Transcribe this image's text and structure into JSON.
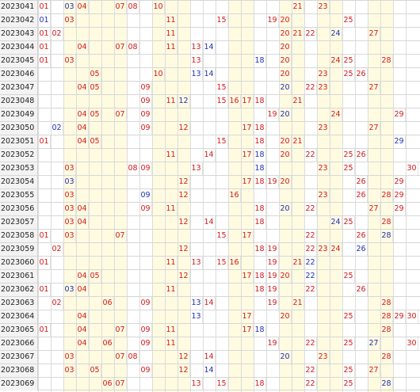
{
  "table": {
    "columns": 29,
    "rows": [
      {
        "issue": "2023041",
        "reds": [
          1,
          4,
          7,
          8,
          10,
          21,
          23
        ],
        "blues": [
          3
        ]
      },
      {
        "issue": "2023042",
        "reds": [
          3,
          11,
          15,
          19,
          20,
          25
        ],
        "blues": [
          1
        ]
      },
      {
        "issue": "2023043",
        "reds": [
          1,
          2,
          11,
          20,
          21,
          22,
          27
        ],
        "blues": [
          24
        ]
      },
      {
        "issue": "2023044",
        "reds": [
          1,
          4,
          7,
          8,
          11,
          13,
          20
        ],
        "blues": [
          14
        ]
      },
      {
        "issue": "2023045",
        "reds": [
          1,
          3,
          13,
          20,
          24,
          25,
          28
        ],
        "blues": [
          18
        ]
      },
      {
        "issue": "2023046",
        "reds": [
          5,
          10,
          20,
          23,
          25,
          26
        ],
        "blues": [
          13,
          14
        ]
      },
      {
        "issue": "2023047",
        "reds": [
          4,
          5,
          9,
          15,
          22,
          23,
          27
        ],
        "blues": [
          20
        ]
      },
      {
        "issue": "2023048",
        "reds": [
          9,
          11,
          15,
          16,
          17,
          18,
          21
        ],
        "blues": [
          12
        ]
      },
      {
        "issue": "2023049",
        "reds": [
          4,
          5,
          7,
          9,
          19,
          24,
          29
        ],
        "blues": [
          20
        ]
      },
      {
        "issue": "2023050",
        "reds": [
          4,
          9,
          12,
          17,
          18,
          23,
          27
        ],
        "blues": [
          2
        ]
      },
      {
        "issue": "2023051",
        "reds": [
          1,
          4,
          5,
          15,
          18,
          20,
          21
        ],
        "blues": [
          29
        ]
      },
      {
        "issue": "2023052",
        "reds": [
          11,
          14,
          17,
          20,
          22,
          25,
          26
        ],
        "blues": [
          18
        ]
      },
      {
        "issue": "2023053",
        "reds": [
          3,
          8,
          9,
          13,
          23,
          25,
          30
        ],
        "blues": [
          18
        ]
      },
      {
        "issue": "2023054",
        "reds": [
          12,
          17,
          18,
          19,
          20,
          26,
          29
        ],
        "blues": [
          3
        ]
      },
      {
        "issue": "2023055",
        "reds": [
          3,
          12,
          16,
          23,
          26,
          28,
          29
        ],
        "blues": [
          9
        ]
      },
      {
        "issue": "2023056",
        "reds": [
          3,
          4,
          9,
          11,
          18,
          22,
          27,
          29
        ],
        "blues": [
          20
        ]
      },
      {
        "issue": "2023057",
        "reds": [
          3,
          4,
          12,
          14,
          18,
          25,
          28
        ],
        "blues": [
          24
        ]
      },
      {
        "issue": "2023058",
        "reds": [
          1,
          3,
          7,
          15,
          17,
          22,
          26
        ],
        "blues": [
          28
        ]
      },
      {
        "issue": "2023059",
        "reds": [
          2,
          12,
          18,
          19,
          22,
          23,
          24
        ],
        "blues": [
          26
        ]
      },
      {
        "issue": "2023060",
        "reds": [
          1,
          11,
          13,
          15,
          16,
          19,
          21
        ],
        "blues": [
          22
        ]
      },
      {
        "issue": "2023061",
        "reds": [
          4,
          5,
          12,
          17,
          18,
          19,
          20,
          25
        ],
        "blues": [
          22
        ]
      },
      {
        "issue": "2023062",
        "reds": [
          1,
          4,
          11,
          18,
          19,
          22,
          26
        ],
        "blues": [
          3
        ]
      },
      {
        "issue": "2023063",
        "reds": [
          2,
          6,
          9,
          14,
          19,
          21,
          28
        ],
        "blues": [
          13
        ]
      },
      {
        "issue": "2023064",
        "reds": [
          4,
          17,
          20,
          25,
          28,
          29,
          30
        ],
        "blues": [
          13
        ]
      },
      {
        "issue": "2023065",
        "reds": [
          1,
          4,
          7,
          9,
          11,
          17,
          28
        ],
        "blues": [
          18
        ]
      },
      {
        "issue": "2023066",
        "reds": [
          4,
          6,
          9,
          11,
          19,
          22,
          25,
          30
        ],
        "blues": [
          27
        ]
      },
      {
        "issue": "2023067",
        "reds": [
          3,
          7,
          8,
          12,
          14,
          23,
          28
        ],
        "blues": [
          20
        ]
      },
      {
        "issue": "2023068",
        "reds": [
          3,
          5,
          9,
          12,
          22,
          25,
          27
        ],
        "blues": [
          14
        ]
      },
      {
        "issue": "2023069",
        "reds": [
          6,
          7,
          13,
          15,
          18,
          22,
          25
        ],
        "blues": [
          28
        ]
      }
    ]
  },
  "colors": {
    "red": "#d21818",
    "blue": "#1f2fb3",
    "shade": "#fffbe1"
  }
}
